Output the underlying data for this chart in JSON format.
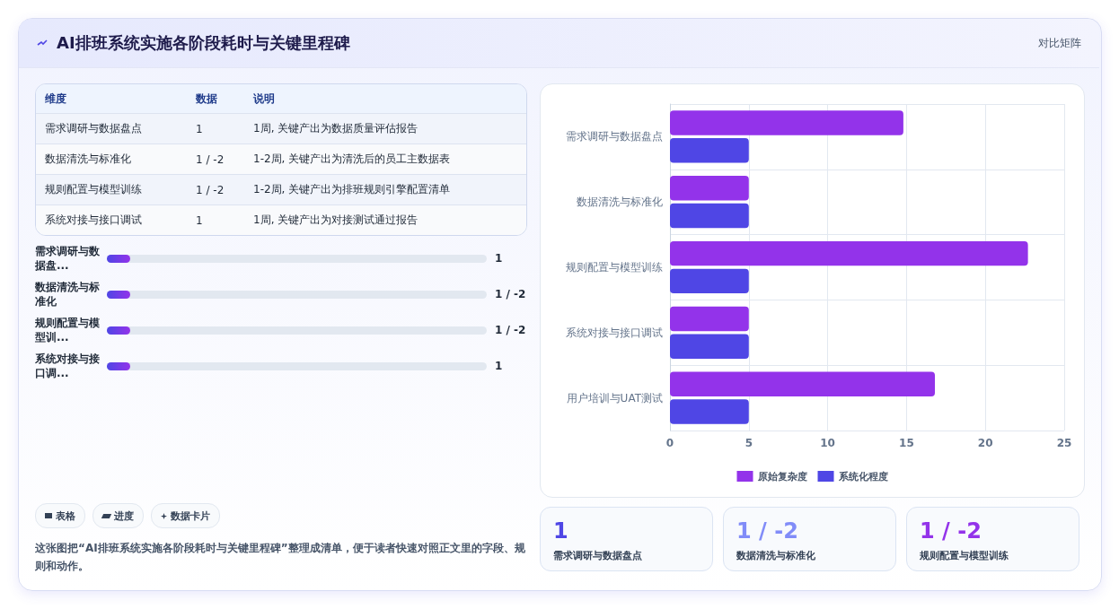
{
  "chart_data": [
    {
      "type": "other",
      "title": "AI排班系统实施各阶段耗时与关键里程碑",
      "annotations": [
        "对比矩阵"
      ]
    },
    {
      "type": "other",
      "annotations": [
        "维度",
        "数据",
        "说明",
        "需求调研与数据盘点",
        "1",
        "1周, 关键产出为数据质量评估报告",
        "数据清洗与标准化",
        "1 / -2",
        "1-2周, 关键产出为清洗后的员工主数据表",
        "规则配置与模型训练",
        "1 / -2",
        "1-2周, 关键产出为排班规则引擎配置清单",
        "系统对接与接口调试",
        "1",
        "1周, 关键产出为对接测试通过报告"
      ]
    },
    {
      "type": "other",
      "annotations": [
        "需求调研与数据盘...",
        "1",
        "数据清洗与标准化",
        "1 / -2",
        "规则配置与模型训...",
        "1 / -2",
        "系统对接与接口调...",
        "1"
      ]
    },
    {
      "type": "bar",
      "orientation": "horizontal",
      "categories": [
        "需求调研与数据盘点",
        "数据清洗与标准化",
        "规则配置与模型训练",
        "系统对接与接口调试",
        "用户培训与UAT测试"
      ],
      "series": [
        {
          "name": "原始复杂度",
          "color": "#9333ea",
          "values": [
            14.8,
            5,
            22.7,
            5,
            16.8
          ]
        },
        {
          "name": "系统化程度",
          "color": "#4f46e5",
          "values": [
            5,
            5,
            5,
            5,
            5
          ]
        }
      ],
      "xlim": [
        0,
        25
      ],
      "xticks": [
        0,
        5,
        10,
        15,
        20,
        25
      ],
      "grid": true,
      "legend": "bottom"
    },
    {
      "type": "other",
      "annotations": [
        "表格",
        "进度",
        "数据卡片",
        "这张图把“AI排班系统实施各阶段耗时与关键里程碑”整理成清单，便于读者快速对照正文里的字段、规则和动作。"
      ]
    },
    {
      "type": "other",
      "colors": [
        "#4f46e5",
        "#818cf8",
        "#9333ea"
      ],
      "annotations": [
        "1",
        "需求调研与数据盘点",
        "1 / -2",
        "数据清洗与标准化",
        "1 / -2",
        "规则配置与模型训练"
      ]
    }
  ]
}
